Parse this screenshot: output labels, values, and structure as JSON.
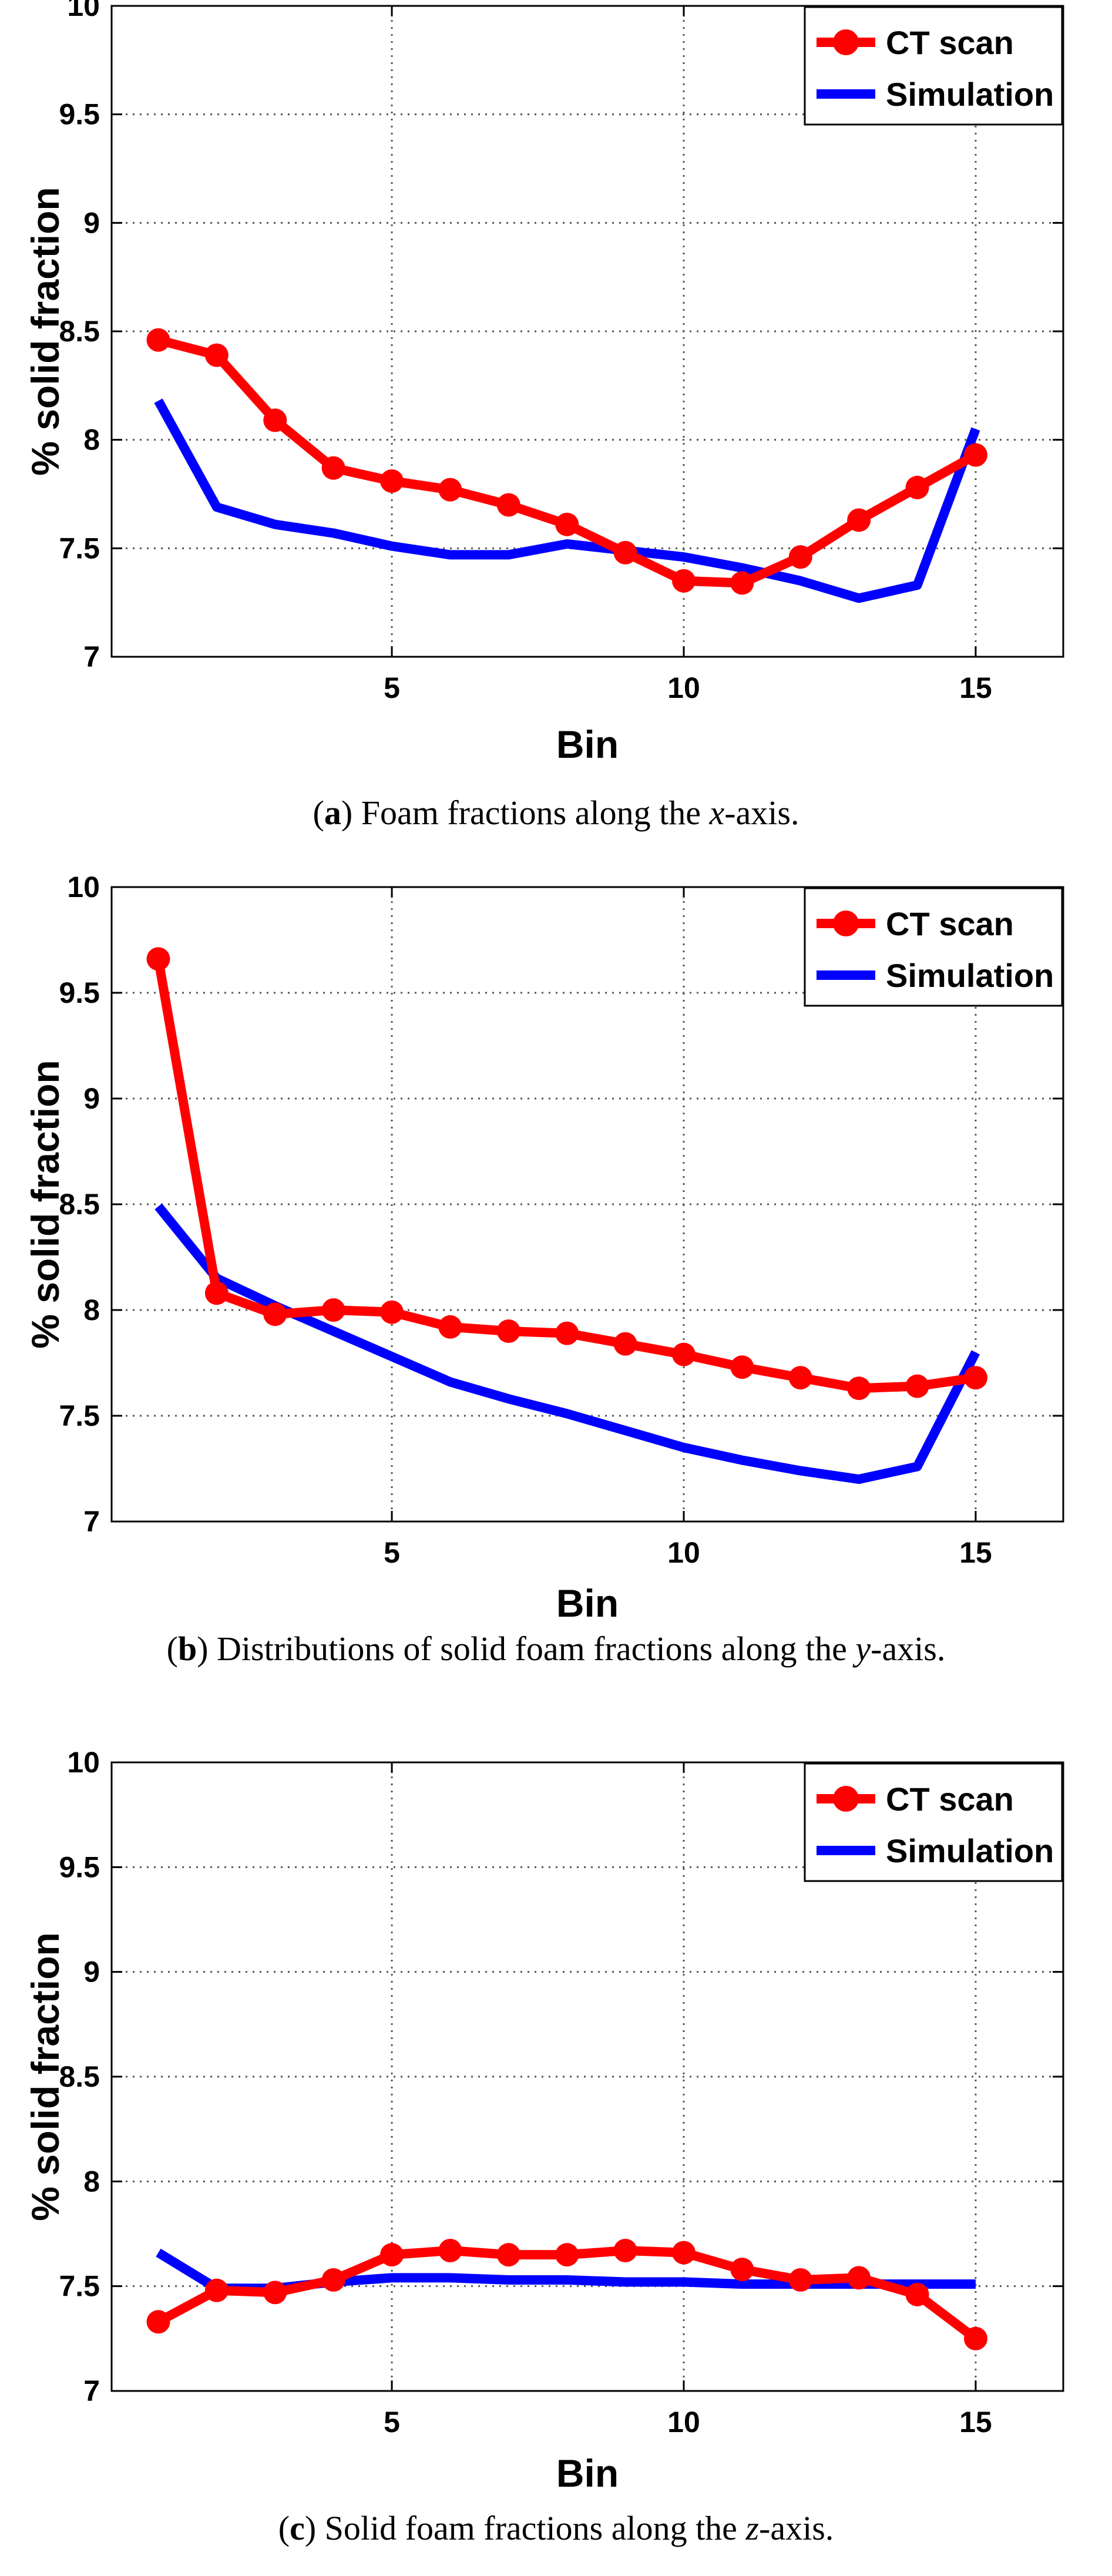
{
  "chart_data": [
    {
      "type": "line",
      "caption_letter": "a",
      "caption_pre": "Foam fractions along the ",
      "caption_axis": "x",
      "caption_post": "-axis.",
      "xlabel": "Bin",
      "ylabel": "% solid fraction",
      "xlim": [
        0.2,
        16.5
      ],
      "ylim": [
        7,
        10
      ],
      "xticks": [
        5,
        10,
        15
      ],
      "yticks": [
        7,
        7.5,
        8,
        8.5,
        9,
        9.5,
        10
      ],
      "ytick_labels": [
        "7",
        "7.5",
        "8",
        "8.5",
        "9",
        "9.5",
        "10"
      ],
      "grid": true,
      "legend_position": "top-right",
      "series": [
        {
          "name": "CT scan",
          "color": "#ff0000",
          "marker": "circle",
          "x": [
            1,
            2,
            3,
            4,
            5,
            6,
            7,
            8,
            9,
            10,
            11,
            12,
            13,
            14,
            15
          ],
          "values": [
            8.46,
            8.39,
            8.09,
            7.87,
            7.81,
            7.77,
            7.7,
            7.61,
            7.48,
            7.35,
            7.34,
            7.46,
            7.63,
            7.78,
            7.93
          ]
        },
        {
          "name": "Simulation",
          "color": "#0000ff",
          "marker": "none",
          "x": [
            1,
            2,
            3,
            4,
            5,
            6,
            7,
            8,
            9,
            10,
            11,
            12,
            13,
            14,
            15
          ],
          "values": [
            8.18,
            7.69,
            7.61,
            7.57,
            7.51,
            7.47,
            7.47,
            7.52,
            7.49,
            7.46,
            7.41,
            7.35,
            7.27,
            7.33,
            8.05
          ]
        }
      ]
    },
    {
      "type": "line",
      "caption_letter": "b",
      "caption_pre": "Distributions of solid foam fractions along the ",
      "caption_axis": "y",
      "caption_post": "-axis.",
      "xlabel": "Bin",
      "ylabel": "% solid fraction",
      "xlim": [
        0.2,
        16.5
      ],
      "ylim": [
        7,
        10
      ],
      "xticks": [
        5,
        10,
        15
      ],
      "yticks": [
        7,
        7.5,
        8,
        8.5,
        9,
        9.5,
        10
      ],
      "ytick_labels": [
        "7",
        "7.5",
        "8",
        "8.5",
        "9",
        "9.5",
        "10"
      ],
      "grid": true,
      "legend_position": "top-right",
      "series": [
        {
          "name": "CT scan",
          "color": "#ff0000",
          "marker": "circle",
          "x": [
            1,
            2,
            3,
            4,
            5,
            6,
            7,
            8,
            9,
            10,
            11,
            12,
            13,
            14,
            15
          ],
          "values": [
            9.66,
            8.08,
            7.98,
            8.0,
            7.99,
            7.92,
            7.9,
            7.89,
            7.84,
            7.79,
            7.73,
            7.68,
            7.63,
            7.64,
            7.68
          ]
        },
        {
          "name": "Simulation",
          "color": "#0000ff",
          "marker": "none",
          "x": [
            1,
            2,
            3,
            4,
            5,
            6,
            7,
            8,
            9,
            10,
            11,
            12,
            13,
            14,
            15
          ],
          "values": [
            8.49,
            8.15,
            8.02,
            7.9,
            7.78,
            7.66,
            7.58,
            7.51,
            7.43,
            7.35,
            7.29,
            7.24,
            7.2,
            7.26,
            7.8
          ]
        }
      ]
    },
    {
      "type": "line",
      "caption_letter": "c",
      "caption_pre": "Solid foam fractions along the ",
      "caption_axis": "z",
      "caption_post": "-axis.",
      "xlabel": "Bin",
      "ylabel": "% solid fraction",
      "xlim": [
        0.2,
        16.5
      ],
      "ylim": [
        7,
        10
      ],
      "xticks": [
        5,
        10,
        15
      ],
      "yticks": [
        7,
        7.5,
        8,
        8.5,
        9,
        9.5,
        10
      ],
      "ytick_labels": [
        "7",
        "7.5",
        "8",
        "8.5",
        "9",
        "9.5",
        "10"
      ],
      "grid": true,
      "legend_position": "top-right",
      "series": [
        {
          "name": "CT scan",
          "color": "#ff0000",
          "marker": "circle",
          "x": [
            1,
            2,
            3,
            4,
            5,
            6,
            7,
            8,
            9,
            10,
            11,
            12,
            13,
            14,
            15
          ],
          "values": [
            7.33,
            7.48,
            7.47,
            7.53,
            7.65,
            7.67,
            7.65,
            7.65,
            7.67,
            7.66,
            7.58,
            7.53,
            7.54,
            7.46,
            7.25
          ]
        },
        {
          "name": "Simulation",
          "color": "#0000ff",
          "marker": "none",
          "x": [
            1,
            2,
            3,
            4,
            5,
            6,
            7,
            8,
            9,
            10,
            11,
            12,
            13,
            14,
            15
          ],
          "values": [
            7.66,
            7.49,
            7.49,
            7.52,
            7.54,
            7.54,
            7.53,
            7.53,
            7.52,
            7.52,
            7.51,
            7.51,
            7.51,
            7.51,
            7.51
          ]
        }
      ]
    }
  ]
}
